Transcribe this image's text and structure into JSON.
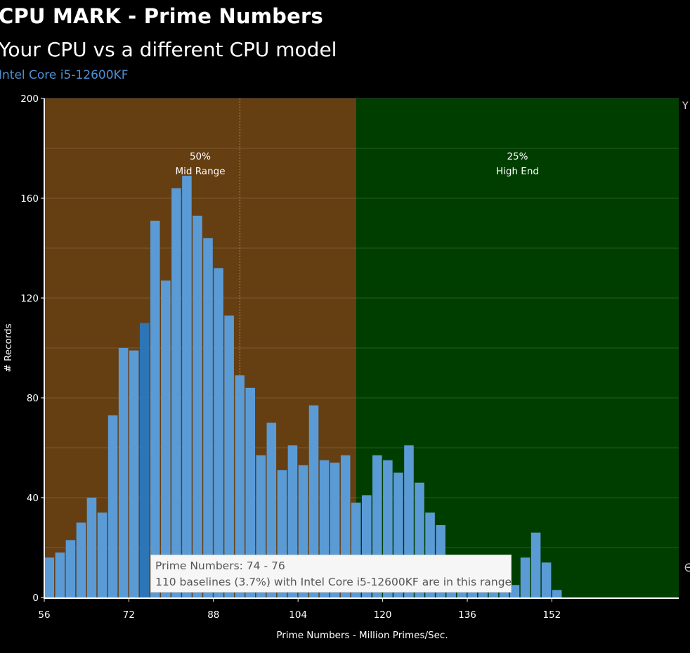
{
  "header": {
    "title": "CPU MARK - Prime Numbers",
    "subtitle": "Your CPU vs a different CPU model",
    "cpu_name": "Intel Core i5-12600KF"
  },
  "chart_data": {
    "type": "bar",
    "xlabel": "Prime Numbers - Million Primes/Sec.",
    "ylabel": "# Records",
    "bin_width": 2,
    "xlim": [
      56,
      176
    ],
    "ylim": [
      0,
      200
    ],
    "x_ticks": [
      56,
      72,
      88,
      104,
      120,
      136,
      152
    ],
    "y_ticks": [
      0,
      40,
      80,
      120,
      160,
      200
    ],
    "grid": true,
    "bin_starts": [
      56,
      58,
      60,
      62,
      64,
      66,
      68,
      70,
      72,
      74,
      76,
      78,
      80,
      82,
      84,
      86,
      88,
      90,
      92,
      94,
      96,
      98,
      100,
      102,
      104,
      106,
      108,
      110,
      112,
      114,
      116,
      118,
      120,
      122,
      124,
      126,
      128,
      130,
      132,
      134,
      136,
      138,
      140,
      142,
      144,
      146,
      148,
      150,
      152
    ],
    "values": [
      16,
      18,
      23,
      30,
      40,
      34,
      73,
      100,
      99,
      110,
      151,
      127,
      164,
      169,
      153,
      144,
      132,
      113,
      89,
      84,
      57,
      70,
      51,
      61,
      53,
      77,
      55,
      54,
      57,
      38,
      41,
      57,
      55,
      50,
      61,
      46,
      34,
      29,
      16,
      13,
      12,
      10,
      7,
      5,
      5,
      16,
      26,
      14,
      3
    ],
    "highlight_bin_start": 74,
    "bar_color": "#5b9bd5",
    "highlight_color": "#2e75b6",
    "regions": [
      {
        "pct": "50%",
        "name": "Mid Range",
        "from": 56,
        "to": 115,
        "color": "#653e12"
      },
      {
        "pct": "25%",
        "name": "High End",
        "from": 115,
        "to": 176,
        "color": "#003e00"
      }
    ],
    "marker_x": 93,
    "tooltip": {
      "line1": "Prime Numbers: 74 - 76",
      "line2": "110 baselines (3.7%) with Intel Core i5-12600KF are in this range"
    }
  },
  "edge": {
    "text": "Y",
    "icon": "zoom-icon"
  }
}
